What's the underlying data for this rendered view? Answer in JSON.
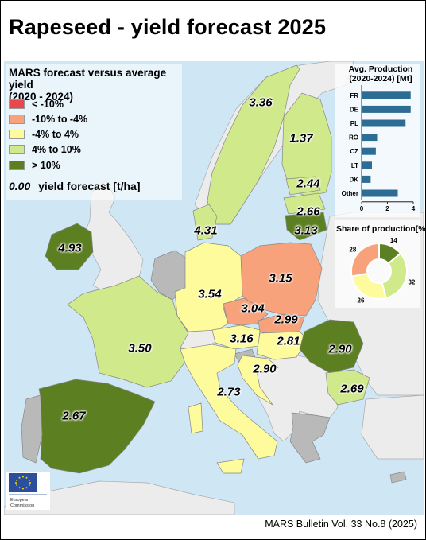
{
  "title": "Rapeseed - yield forecast 2025",
  "legend": {
    "title_line1": "MARS forecast versus average yield",
    "title_line2": "(2020 - 2024)",
    "items": [
      {
        "label": "< -10%",
        "color": "#e8494f"
      },
      {
        "label": "-10% to -4%",
        "color": "#f7a27b"
      },
      {
        "label": "-4% to 4%",
        "color": "#fdfb9b"
      },
      {
        "label": "4% to 10%",
        "color": "#cfe98b"
      },
      {
        "label": "> 10%",
        "color": "#5c7f21"
      }
    ],
    "forecast_sample": "0.00",
    "forecast_label": "yield forecast [t/ha]"
  },
  "colors": {
    "sea": "#cfe6f5",
    "non_eu": "#ececec",
    "no_data": "#b9b9b9",
    "bar": "#2e6d93",
    "pie_dark": "#5c7f21",
    "pie_light": "#cfe98b",
    "pie_yellow": "#fdfb9b",
    "pie_orange": "#f7a27b"
  },
  "yields": [
    {
      "country": "SE",
      "value": "3.36"
    },
    {
      "country": "FI",
      "value": "1.37"
    },
    {
      "country": "EE",
      "value": "2.44"
    },
    {
      "country": "LV",
      "value": "2.66"
    },
    {
      "country": "LT",
      "value": "3.13"
    },
    {
      "country": "DK",
      "value": "4.31"
    },
    {
      "country": "IE",
      "value": "4.93"
    },
    {
      "country": "PL",
      "value": "3.15"
    },
    {
      "country": "DE",
      "value": "3.54"
    },
    {
      "country": "CZ",
      "value": "3.04"
    },
    {
      "country": "SK",
      "value": "2.99"
    },
    {
      "country": "FR",
      "value": "3.50"
    },
    {
      "country": "AT",
      "value": "3.16"
    },
    {
      "country": "HU",
      "value": "2.81"
    },
    {
      "country": "RO",
      "value": "2.90"
    },
    {
      "country": "HR",
      "value": "2.90"
    },
    {
      "country": "IT",
      "value": "2.73"
    },
    {
      "country": "BG",
      "value": "2.69"
    },
    {
      "country": "ES",
      "value": "2.67"
    }
  ],
  "production_chart": {
    "title_line1": "Avg. Production",
    "title_line2": "(2020-2024) [Mt]"
  },
  "share_chart": {
    "title": "Share of production[%]"
  },
  "chart_data": [
    {
      "type": "bar",
      "orientation": "horizontal",
      "title": "Avg. Production (2020-2024) [Mt]",
      "categories": [
        "FR",
        "DE",
        "PL",
        "RO",
        "CZ",
        "LT",
        "DK",
        "Other"
      ],
      "values": [
        3.8,
        3.8,
        3.4,
        1.2,
        1.1,
        0.8,
        0.7,
        2.8
      ],
      "xlim": [
        0,
        4
      ],
      "xticks": [
        "0",
        "2",
        "4"
      ]
    },
    {
      "type": "pie",
      "title": "Share of production[%]",
      "values": [
        14,
        32,
        26,
        28
      ],
      "labels": [
        "14",
        "32",
        "26",
        "28"
      ]
    }
  ],
  "footer": "MARS Bulletin Vol. 33 No.8 (2025)",
  "eu_logo_text_1": "European",
  "eu_logo_text_2": "Commission"
}
